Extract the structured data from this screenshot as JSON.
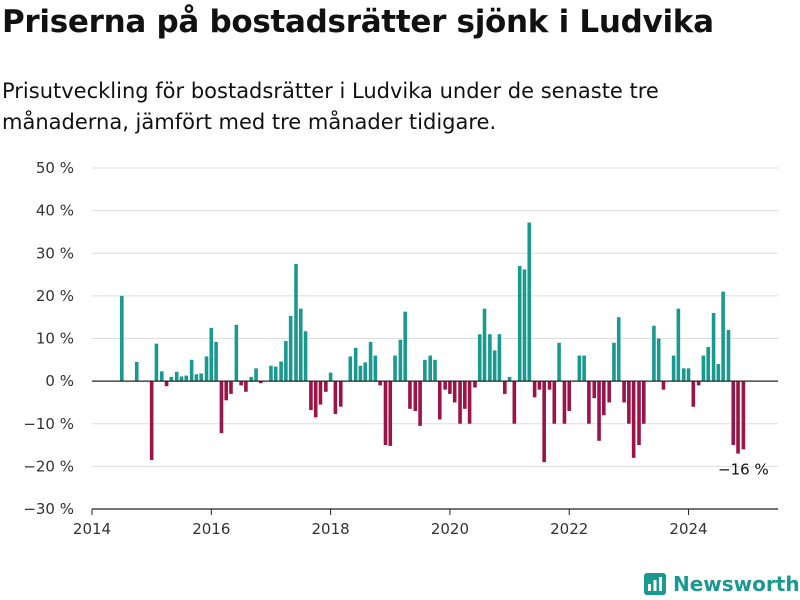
{
  "chart_data": {
    "type": "bar",
    "title": "Priserna på bostadsrätter sjönk i Ludvika",
    "subtitle": "Prisutveckling för bostadsrätter i Ludvika under de senaste tre månaderna, jämfört med tre månader tidigare.",
    "xlabel": "",
    "ylabel": "",
    "ylim": [
      -30,
      50
    ],
    "xlim": [
      2014,
      2025.5
    ],
    "y_ticks": [
      50,
      40,
      30,
      20,
      10,
      0,
      -10,
      -20,
      -30
    ],
    "y_tick_labels": [
      "50 %",
      "40 %",
      "30 %",
      "20 %",
      "10 %",
      "0 %",
      "−10 %",
      "−20 %",
      "−30 %"
    ],
    "x_ticks": [
      2014,
      2016,
      2018,
      2020,
      2022,
      2024
    ],
    "x_tick_labels": [
      "2014",
      "2016",
      "2018",
      "2020",
      "2022",
      "2024"
    ],
    "grid": true,
    "colors": {
      "positive": "#1a9990",
      "negative": "#9c1348",
      "zero_line": "#222222",
      "grid": "#dddddd"
    },
    "x": [
      2014.5,
      2014.75,
      2015.0,
      2015.08,
      2015.17,
      2015.25,
      2015.33,
      2015.42,
      2015.5,
      2015.58,
      2015.67,
      2015.75,
      2015.83,
      2015.92,
      2016.0,
      2016.08,
      2016.17,
      2016.25,
      2016.33,
      2016.42,
      2016.5,
      2016.58,
      2016.67,
      2016.75,
      2016.83,
      2016.92,
      2017.0,
      2017.08,
      2017.17,
      2017.25,
      2017.33,
      2017.42,
      2017.5,
      2017.58,
      2017.67,
      2017.75,
      2017.83,
      2017.92,
      2018.0,
      2018.08,
      2018.17,
      2018.25,
      2018.33,
      2018.42,
      2018.5,
      2018.58,
      2018.67,
      2018.75,
      2018.83,
      2018.92,
      2019.0,
      2019.08,
      2019.17,
      2019.25,
      2019.33,
      2019.42,
      2019.5,
      2019.58,
      2019.67,
      2019.75,
      2019.83,
      2019.92,
      2020.0,
      2020.08,
      2020.17,
      2020.25,
      2020.33,
      2020.42,
      2020.5,
      2020.58,
      2020.67,
      2020.75,
      2020.83,
      2020.92,
      2021.0,
      2021.08,
      2021.17,
      2021.25,
      2021.33,
      2021.42,
      2021.5,
      2021.58,
      2021.67,
      2021.75,
      2021.83,
      2021.92,
      2022.0,
      2022.08,
      2022.17,
      2022.25,
      2022.33,
      2022.42,
      2022.5,
      2022.58,
      2022.67,
      2022.75,
      2022.83,
      2022.92,
      2023.0,
      2023.08,
      2023.17,
      2023.25,
      2023.33,
      2023.42,
      2023.5,
      2023.58,
      2023.67,
      2023.75,
      2023.83,
      2023.92,
      2024.0,
      2024.08,
      2024.17,
      2024.25,
      2024.33,
      2024.42,
      2024.5,
      2024.58,
      2024.67,
      2024.75,
      2024.83,
      2024.92
    ],
    "values": [
      20,
      4.5,
      -18.5,
      8.8,
      2.3,
      -1.2,
      1,
      2.2,
      1.1,
      1.3,
      5,
      1.6,
      1.8,
      5.8,
      12.5,
      9.2,
      -12.2,
      -4.5,
      -3,
      13.2,
      -1,
      -2.5,
      1,
      3,
      -0.5,
      0,
      3.6,
      3.4,
      4.6,
      9.4,
      15.3,
      27.5,
      17,
      11.7,
      -6.8,
      -8.5,
      -5.5,
      -2.5,
      2,
      -7.7,
      -6,
      0,
      5.8,
      7.8,
      3.6,
      4.4,
      9.2,
      6,
      -1,
      -15,
      -15.2,
      6,
      9.7,
      16.3,
      -6.5,
      -7,
      -10.5,
      5,
      6,
      5,
      -9,
      -2,
      -3,
      -5,
      -10,
      -6.5,
      -10,
      -1.5,
      11,
      17,
      11,
      7.2,
      11,
      -3,
      1,
      -10,
      27,
      26.2,
      37.2,
      -3.8,
      -2,
      -19,
      -2,
      -10,
      9,
      -10,
      -7,
      0,
      6,
      6,
      -10,
      -4,
      -14,
      -8,
      -5,
      9,
      15,
      -5,
      -10,
      -18,
      -15,
      -10,
      0,
      13,
      10,
      -2,
      0,
      6,
      17,
      3,
      3,
      -6,
      -1,
      6,
      8,
      16,
      4,
      21,
      12,
      -15,
      -17,
      -16
    ],
    "annotation": {
      "x": 2024.92,
      "value": -16,
      "label": "−16 %"
    },
    "brand": {
      "text": "Newsworthy",
      "icon": "bar-chart-logo-icon"
    }
  }
}
